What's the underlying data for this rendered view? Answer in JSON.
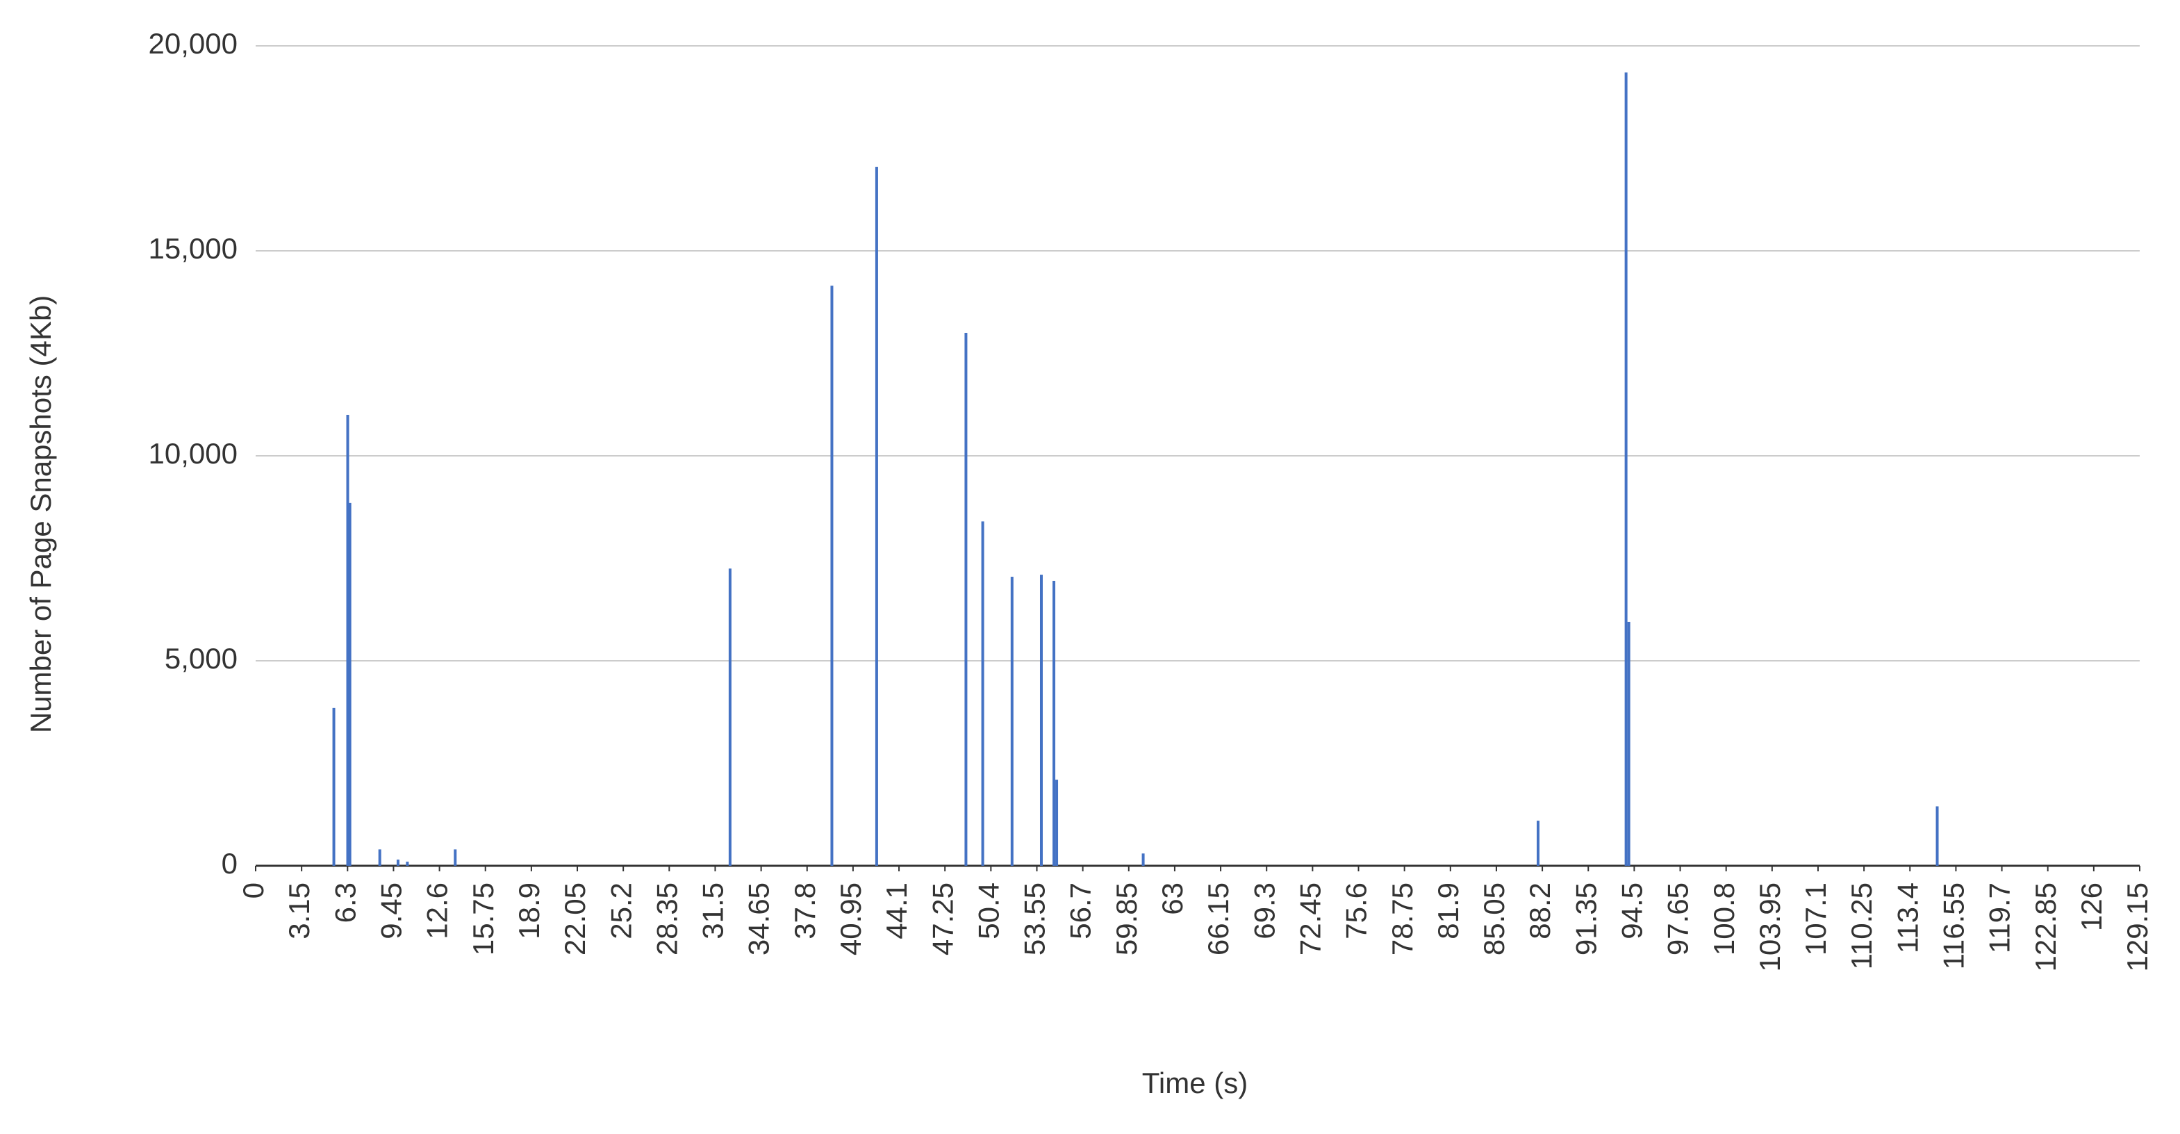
{
  "chart_data": {
    "type": "bar",
    "x_label": "Time (s)",
    "y_label": "Number of Page Snapshots (4Kb)",
    "x": [
      5.36,
      6.31,
      6.46,
      8.51,
      9.76,
      10.4,
      13.68,
      32.52,
      39.5,
      42.57,
      48.69,
      49.84,
      51.85,
      53.86,
      54.72,
      54.91,
      60.84,
      87.91,
      93.94,
      94.13,
      115.27
    ],
    "values": [
      3850,
      11000,
      8850,
      400,
      150,
      100,
      400,
      7250,
      14150,
      17050,
      13000,
      8400,
      7050,
      7100,
      6950,
      2100,
      300,
      1100,
      19350,
      5950,
      1450
    ],
    "color": "#4472c4",
    "xlim": [
      0,
      129.15
    ],
    "xticks": [
      0,
      3.15,
      6.3,
      9.45,
      12.6,
      15.75,
      18.9,
      22.05,
      25.2,
      28.35,
      31.5,
      34.65,
      37.8,
      40.95,
      44.1,
      47.25,
      50.4,
      53.55,
      56.7,
      59.85,
      63,
      66.15,
      69.3,
      72.45,
      75.6,
      78.75,
      81.9,
      85.05,
      88.2,
      91.35,
      94.5,
      97.65,
      100.8,
      103.95,
      107.1,
      110.25,
      113.4,
      116.55,
      119.7,
      122.85,
      126,
      129.15
    ],
    "ylim": [
      0,
      20000
    ],
    "yticks": [
      0,
      {
        "value": 5000,
        "label": "5,000"
      },
      {
        "value": 10000,
        "label": "10,000"
      },
      {
        "value": 15000,
        "label": "15,000"
      },
      {
        "value": 20000,
        "label": "20,000"
      }
    ],
    "grid": true
  }
}
